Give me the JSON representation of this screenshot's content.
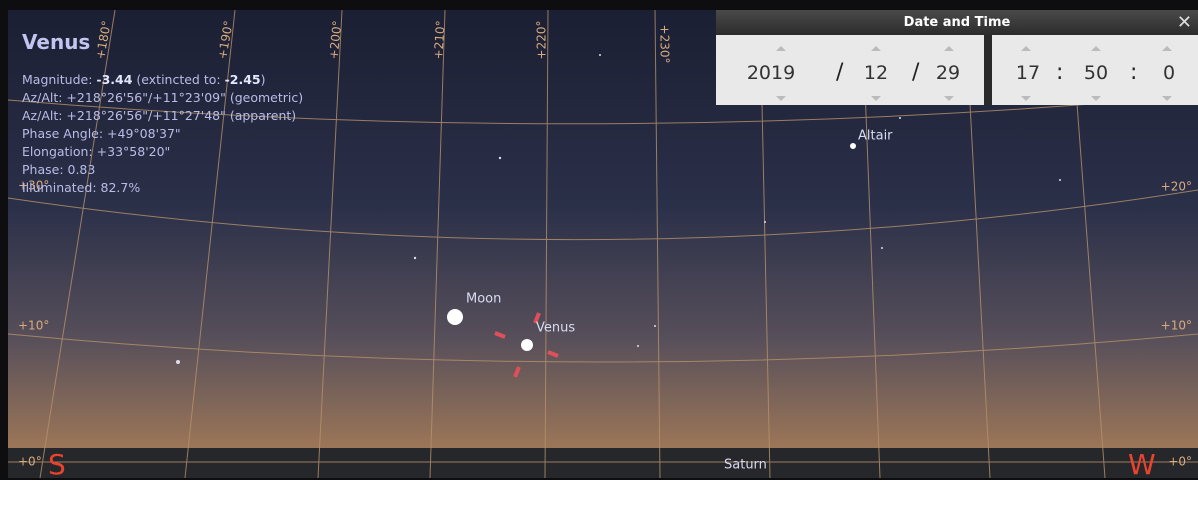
{
  "info": {
    "name": "Venus",
    "magnitude": {
      "label": "Magnitude: ",
      "value": "-3.44",
      "extincted_label": " (extincted to: ",
      "extincted_value": "-2.45",
      "close": ")"
    },
    "lines": [
      "Az/Alt: +218°26'56\"/+11°23'09\" (geometric)",
      "Az/Alt: +218°26'56\"/+11°27'48\" (apparent)",
      "Phase Angle: +49°08'37\"",
      "Elongation: +33°58'20\"",
      "Phase: 0.83",
      "Illuminated: 82.7%"
    ]
  },
  "grid": {
    "azimuth": [
      "+180°",
      "+190°",
      "+200°",
      "+210°",
      "+220°",
      "+230°"
    ],
    "altitude_left": [
      "+30°",
      "+10°",
      "+0°"
    ],
    "altitude_right": [
      "+20°",
      "+10°",
      "+0°"
    ]
  },
  "compass": {
    "south": "S",
    "west": "W"
  },
  "objects": {
    "moon": "Moon",
    "venus": "Venus",
    "altair": "Altair",
    "saturn": "Saturn"
  },
  "date_time": {
    "title": "Date and Time",
    "year": 2019,
    "month": 12,
    "day": 29,
    "hour": 17,
    "minute": 50,
    "second": 0,
    "date_separator": "/",
    "time_separator": ":"
  }
}
